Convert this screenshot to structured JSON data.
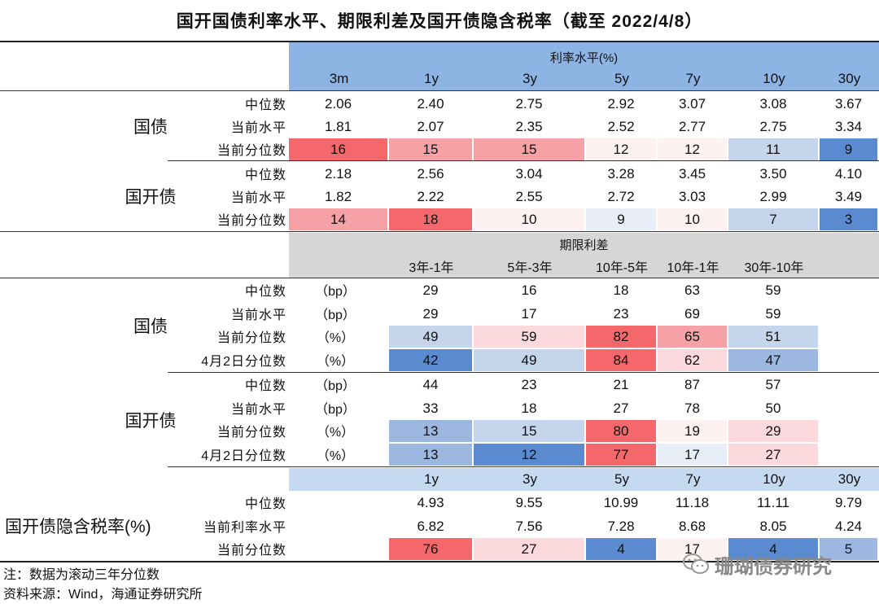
{
  "title": "国开国债利率水平、期限利差及国开债隐含税率（截至 2022/4/8）",
  "colors": {
    "headerBlue": "#8db4e2",
    "lightBlue": "#c5d9f1",
    "gray": "#d6d6d6",
    "red1": "#f4686c",
    "red2": "#f6a1a5",
    "red3": "#fbd9dc",
    "red4": "#fdf1f2",
    "blue1": "#5a8bd0",
    "blue2": "#c5d5ec",
    "blue3": "#e8eef8",
    "blue4": "#9cb8e1"
  },
  "section1": {
    "band_label": "利率水平(%)",
    "columns": [
      "3m",
      "1y",
      "3y",
      "5y",
      "7y",
      "10y",
      "30y"
    ],
    "groups": [
      {
        "name": "国债",
        "rows": [
          {
            "label": "中位数",
            "values": [
              "2.06",
              "2.40",
              "2.75",
              "2.92",
              "3.07",
              "3.08",
              "3.67"
            ]
          },
          {
            "label": "当前水平",
            "values": [
              "1.81",
              "2.07",
              "2.35",
              "2.52",
              "2.77",
              "2.75",
              "3.34"
            ]
          },
          {
            "label": "当前分位数",
            "values": [
              "16",
              "15",
              "15",
              "12",
              "12",
              "11",
              "9"
            ]
          }
        ]
      },
      {
        "name": "国开债",
        "rows": [
          {
            "label": "中位数",
            "values": [
              "2.18",
              "2.56",
              "3.04",
              "3.28",
              "3.45",
              "3.50",
              "4.10"
            ]
          },
          {
            "label": "当前水平",
            "values": [
              "1.82",
              "2.22",
              "2.55",
              "2.72",
              "3.03",
              "2.99",
              "3.49"
            ]
          },
          {
            "label": "当前分位数",
            "values": [
              "14",
              "18",
              "10",
              "9",
              "10",
              "7",
              "3"
            ]
          }
        ]
      }
    ]
  },
  "section2": {
    "band_label": "期限利差",
    "columns": [
      "3年-1年",
      "5年-3年",
      "10年-5年",
      "10年-1年",
      "30年-10年"
    ],
    "groups": [
      {
        "name": "国债",
        "rows": [
          {
            "label": "中位数",
            "unit": "（bp）",
            "values": [
              "29",
              "16",
              "18",
              "63",
              "59"
            ]
          },
          {
            "label": "当前水平",
            "unit": "（bp）",
            "values": [
              "29",
              "17",
              "23",
              "69",
              "59"
            ]
          },
          {
            "label": "当前分位数",
            "unit": "（%）",
            "values": [
              "49",
              "59",
              "82",
              "65",
              "51"
            ]
          },
          {
            "label": "4月2日分位数",
            "unit": "（%）",
            "values": [
              "42",
              "49",
              "84",
              "62",
              "47"
            ]
          }
        ]
      },
      {
        "name": "国开债",
        "rows": [
          {
            "label": "中位数",
            "unit": "（bp）",
            "values": [
              "44",
              "23",
              "21",
              "87",
              "57"
            ]
          },
          {
            "label": "当前水平",
            "unit": "（bp）",
            "values": [
              "33",
              "18",
              "27",
              "78",
              "50"
            ]
          },
          {
            "label": "当前分位数",
            "unit": "（%）",
            "values": [
              "13",
              "15",
              "80",
              "19",
              "29"
            ]
          },
          {
            "label": "4月2日分位数",
            "unit": "（%）",
            "values": [
              "13",
              "12",
              "77",
              "17",
              "27"
            ]
          }
        ]
      }
    ]
  },
  "section3": {
    "name": "国开债隐含税率(%)",
    "columns": [
      "1y",
      "3y",
      "5y",
      "7y",
      "10y",
      "30y"
    ],
    "rows": [
      {
        "label": "中位数",
        "values": [
          "4.93",
          "9.55",
          "10.99",
          "11.18",
          "11.11",
          "9.79"
        ]
      },
      {
        "label": "当前利率水平",
        "values": [
          "6.82",
          "7.56",
          "7.28",
          "8.68",
          "8.05",
          "4.24"
        ]
      },
      {
        "label": "当前分位数",
        "values": [
          "76",
          "27",
          "4",
          "17",
          "4",
          "5"
        ]
      }
    ]
  },
  "notes": {
    "note1": "注：数据为滚动三年分位数",
    "note2": "资料来源：Wind，海通证券研究所"
  },
  "watermark": "珊瑚债券研究"
}
